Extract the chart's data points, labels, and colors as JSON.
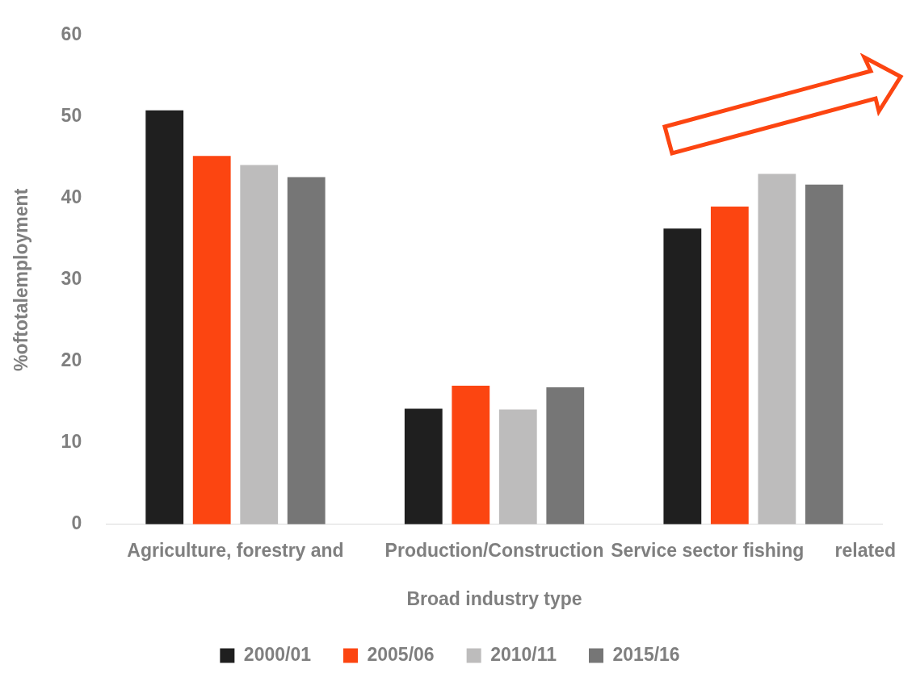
{
  "chart_data": {
    "type": "bar",
    "xlabel": "Broad industry type",
    "ylabel": "%oftotalemployment",
    "categories": [
      "Agriculture, forestry and",
      "Production/Construction",
      "Service sector fishing      related"
    ],
    "series": [
      {
        "name": "2000/01",
        "color": "#1f1f1f",
        "values": [
          50.8,
          14.2,
          36.3
        ]
      },
      {
        "name": "2005/06",
        "color": "#fc4511",
        "values": [
          45.2,
          17.0,
          39.0
        ]
      },
      {
        "name": "2010/11",
        "color": "#bdbcbc",
        "values": [
          44.1,
          14.1,
          43.0
        ]
      },
      {
        "name": "2015/16",
        "color": "#767676",
        "values": [
          42.6,
          16.8,
          41.7
        ]
      }
    ],
    "ylim": [
      0,
      60
    ],
    "yticks": [
      0,
      10,
      20,
      30,
      40,
      50,
      60
    ],
    "grid": false,
    "legend": "bottom"
  }
}
